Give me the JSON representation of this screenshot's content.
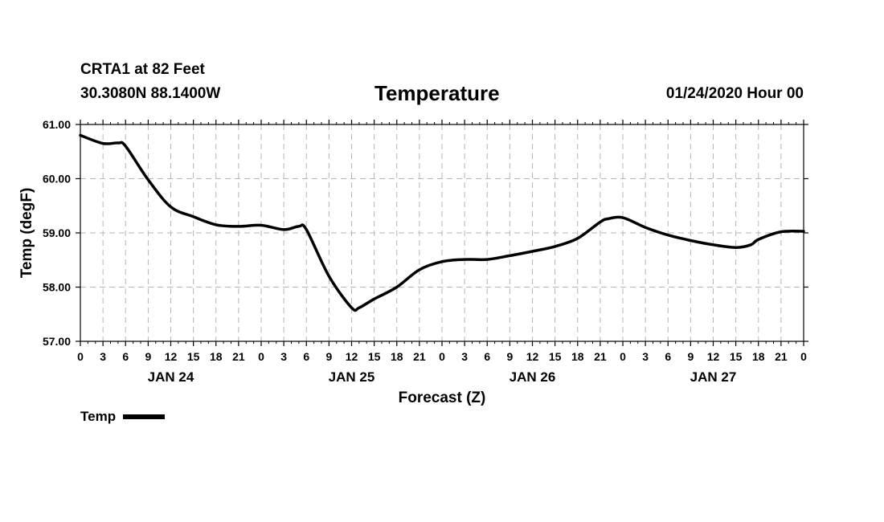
{
  "header": {
    "station": "CRTA1 at 82 Feet",
    "coords": "30.3080N 88.1400W",
    "title": "Temperature",
    "run_time": "01/24/2020 Hour 00"
  },
  "legend": {
    "label": "Temp"
  },
  "chart_data": {
    "type": "line",
    "title": "Temperature",
    "xlabel": "Forecast (Z)",
    "ylabel": "Temp (degF)",
    "xlim": [
      0,
      96
    ],
    "ylim": [
      57,
      61
    ],
    "y_ticks": [
      "57.00",
      "58.00",
      "59.00",
      "60.00",
      "61.00"
    ],
    "y_tick_values": [
      57,
      58,
      59,
      60,
      61
    ],
    "x_tick_labels": [
      "0",
      "3",
      "6",
      "9",
      "12",
      "15",
      "18",
      "21",
      "0",
      "3",
      "6",
      "9",
      "12",
      "15",
      "18",
      "21",
      "0",
      "3",
      "6",
      "9",
      "12",
      "15",
      "18",
      "21",
      "0",
      "3",
      "6",
      "9",
      "12",
      "15",
      "18",
      "21",
      "0"
    ],
    "day_labels": [
      {
        "label": "JAN 24",
        "hour": 12
      },
      {
        "label": "JAN 25",
        "hour": 36
      },
      {
        "label": "JAN 26",
        "hour": 60
      },
      {
        "label": "JAN 27",
        "hour": 84
      }
    ],
    "grid": true,
    "legend_position": "bottom-left",
    "series": [
      {
        "name": "Temp",
        "color": "#000000",
        "x": [
          0,
          3,
          5,
          6,
          9,
          12,
          15,
          18,
          21,
          24,
          27,
          29,
          30,
          33,
          36,
          37,
          39,
          42,
          45,
          48,
          51,
          54,
          57,
          60,
          63,
          66,
          69,
          70,
          72,
          75,
          78,
          81,
          84,
          87,
          89,
          90,
          93,
          96
        ],
        "y": [
          60.8,
          60.65,
          60.66,
          60.6,
          59.98,
          59.48,
          59.3,
          59.15,
          59.12,
          59.14,
          59.06,
          59.12,
          59.06,
          58.2,
          57.62,
          57.62,
          57.78,
          58.0,
          58.32,
          58.47,
          58.51,
          58.51,
          58.58,
          58.66,
          58.75,
          58.9,
          59.2,
          59.26,
          59.28,
          59.1,
          58.96,
          58.86,
          58.78,
          58.73,
          58.78,
          58.88,
          59.02,
          59.03
        ]
      }
    ]
  }
}
